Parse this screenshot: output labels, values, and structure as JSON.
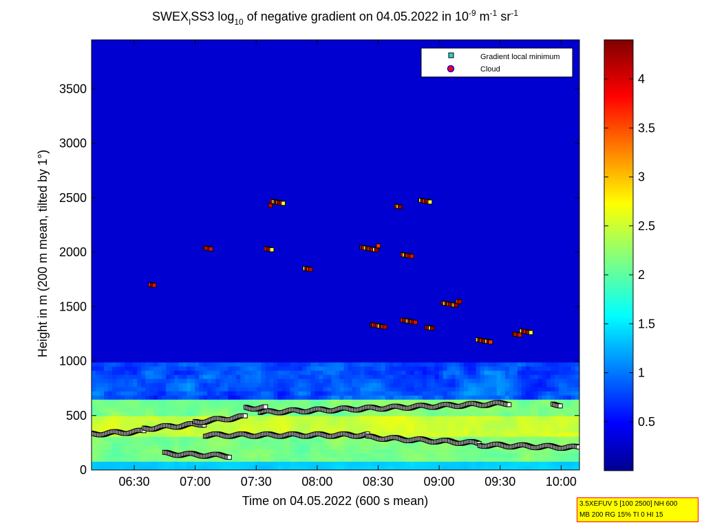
{
  "chart_data": {
    "type": "heatmap",
    "title": {
      "prefix": "SWEX",
      "sub1": "I",
      "middle": "SS3 log",
      "sub2": "10",
      "text": " of negative gradient on 04.05.2022 in 10",
      "sup1": "-9",
      "unit1": " m",
      "sup2": "-1",
      "unit2": " sr",
      "sup3": "-1"
    },
    "xlabel": "Time on 04.05.2022 (600 s mean)",
    "ylabel": "Height in m (200 m mean, tilted by 1°)",
    "xlim": [
      "06:09",
      "10:09"
    ],
    "ylim": [
      0,
      3950
    ],
    "x_ticks": [
      {
        "label": "06:30",
        "minutes": 390
      },
      {
        "label": "07:00",
        "minutes": 420
      },
      {
        "label": "07:30",
        "minutes": 450
      },
      {
        "label": "08:00",
        "minutes": 480
      },
      {
        "label": "08:30",
        "minutes": 510
      },
      {
        "label": "09:00",
        "minutes": 540
      },
      {
        "label": "09:30",
        "minutes": 570
      },
      {
        "label": "10:00",
        "minutes": 600
      }
    ],
    "y_ticks": [
      {
        "label": "0",
        "value": 0
      },
      {
        "label": "500",
        "value": 500
      },
      {
        "label": "1000",
        "value": 1000
      },
      {
        "label": "1500",
        "value": 1500
      },
      {
        "label": "2000",
        "value": 2000
      },
      {
        "label": "2500",
        "value": 2500
      },
      {
        "label": "3000",
        "value": 3000
      },
      {
        "label": "3500",
        "value": 3500
      }
    ],
    "colorbar": {
      "colormap": "jet",
      "range": [
        0,
        4.4
      ],
      "ticks": [
        {
          "label": "0.5",
          "value": 0.5
        },
        {
          "label": "1",
          "value": 1
        },
        {
          "label": "1.5",
          "value": 1.5
        },
        {
          "label": "2",
          "value": 2
        },
        {
          "label": "2.5",
          "value": 2.5
        },
        {
          "label": "3",
          "value": 3
        },
        {
          "label": "3.5",
          "value": 3.5
        },
        {
          "label": "4",
          "value": 4
        }
      ]
    },
    "legend": {
      "placement": "top-right",
      "entries": [
        {
          "label": "Gradient local minimum",
          "marker": "square",
          "color": "#33cccc"
        },
        {
          "label": "Cloud",
          "marker": "circle",
          "color": "#ff0000",
          "edge": "#0000ff"
        }
      ]
    },
    "layers": [
      {
        "height": 320,
        "t_start": 360,
        "t_end": 395,
        "slope": 60
      },
      {
        "height": 380,
        "t_start": 395,
        "t_end": 425,
        "slope": 90
      },
      {
        "height": 440,
        "t_start": 420,
        "t_end": 445,
        "slope": 120
      },
      {
        "height": 320,
        "t_start": 425,
        "t_end": 505,
        "slope": 0
      },
      {
        "height": 300,
        "t_start": 505,
        "t_end": 560,
        "slope": -60
      },
      {
        "height": 230,
        "t_start": 560,
        "t_end": 609,
        "slope": -30
      },
      {
        "height": 530,
        "t_start": 452,
        "t_end": 575,
        "slope": 40
      },
      {
        "height": 570,
        "t_start": 445,
        "t_end": 455,
        "slope": 0
      },
      {
        "height": 600,
        "t_start": 596,
        "t_end": 600,
        "slope": 0
      },
      {
        "height": 150,
        "t_start": 405,
        "t_end": 437,
        "slope": -40
      }
    ],
    "cloud_clusters": [
      {
        "height": 2450,
        "t": 457,
        "n": 8
      },
      {
        "height": 2430,
        "t": 519,
        "n": 3
      },
      {
        "height": 2470,
        "t": 531,
        "n": 6
      },
      {
        "height": 2020,
        "t": 425,
        "n": 4
      },
      {
        "height": 2040,
        "t": 455,
        "n": 4
      },
      {
        "height": 2040,
        "t": 502,
        "n": 10
      },
      {
        "height": 1960,
        "t": 522,
        "n": 6
      },
      {
        "height": 1860,
        "t": 474,
        "n": 4
      },
      {
        "height": 1330,
        "t": 507,
        "n": 8
      },
      {
        "height": 1360,
        "t": 522,
        "n": 8
      },
      {
        "height": 1320,
        "t": 534,
        "n": 4
      },
      {
        "height": 1530,
        "t": 542,
        "n": 10
      },
      {
        "height": 1180,
        "t": 559,
        "n": 8
      },
      {
        "height": 1260,
        "t": 577,
        "n": 10
      },
      {
        "height": 1700,
        "t": 398,
        "n": 3
      }
    ]
  },
  "info_box": {
    "line1": "3.5XEFUV 5 [100 2500] NH 600",
    "line2": "MB 200 RG 15% TI 0 HI 15"
  }
}
